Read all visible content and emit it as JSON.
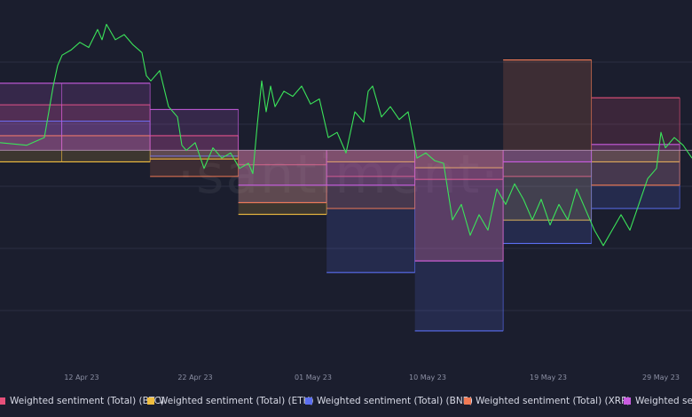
{
  "watermark": "·santiment·",
  "chart_data": {
    "type": "area",
    "title": "",
    "xlabel": "",
    "ylabel": "",
    "x_ticks": [
      "12 Apr 23",
      "22 Apr 23",
      "01 May 23",
      "10 May 23",
      "19 May 23",
      "29 May 23"
    ],
    "x_range": [
      "2023-04-03",
      "2023-06-01"
    ],
    "price_series": {
      "name": "",
      "color": "#3be35a",
      "y_range": [
        0,
        100
      ],
      "points": [
        [
          0,
          48
        ],
        [
          3,
          47
        ],
        [
          5,
          50
        ],
        [
          6,
          70
        ],
        [
          6.5,
          78
        ],
        [
          7,
          82
        ],
        [
          8,
          84
        ],
        [
          9,
          87
        ],
        [
          10,
          85
        ],
        [
          11,
          92
        ],
        [
          11.5,
          88
        ],
        [
          12,
          94
        ],
        [
          13,
          88
        ],
        [
          14,
          90
        ],
        [
          15,
          86
        ],
        [
          16,
          83
        ],
        [
          16.5,
          74
        ],
        [
          17,
          72
        ],
        [
          18,
          76
        ],
        [
          19,
          62
        ],
        [
          20,
          58
        ],
        [
          20.5,
          47
        ],
        [
          21,
          45
        ],
        [
          22,
          48
        ],
        [
          23,
          38
        ],
        [
          24,
          46
        ],
        [
          25,
          42
        ],
        [
          26,
          44
        ],
        [
          27,
          38
        ],
        [
          28,
          40
        ],
        [
          28.5,
          36
        ],
        [
          29,
          55
        ],
        [
          29.5,
          72
        ],
        [
          30,
          60
        ],
        [
          30.5,
          70
        ],
        [
          31,
          62
        ],
        [
          32,
          68
        ],
        [
          33,
          66
        ],
        [
          34,
          70
        ],
        [
          35,
          63
        ],
        [
          36,
          65
        ],
        [
          37,
          50
        ],
        [
          38,
          52
        ],
        [
          39,
          44
        ],
        [
          40,
          60
        ],
        [
          41,
          56
        ],
        [
          41.5,
          68
        ],
        [
          42,
          70
        ],
        [
          43,
          58
        ],
        [
          44,
          62
        ],
        [
          45,
          57
        ],
        [
          46,
          60
        ],
        [
          47,
          42
        ],
        [
          48,
          44
        ],
        [
          49,
          41
        ],
        [
          50,
          40
        ],
        [
          51,
          18
        ],
        [
          52,
          24
        ],
        [
          53,
          12
        ],
        [
          54,
          20
        ],
        [
          55,
          14
        ],
        [
          56,
          30
        ],
        [
          57,
          24
        ],
        [
          58,
          32
        ],
        [
          59,
          26
        ],
        [
          60,
          18
        ],
        [
          61,
          26
        ],
        [
          62,
          16
        ],
        [
          63,
          24
        ],
        [
          64,
          18
        ],
        [
          65,
          30
        ],
        [
          66,
          22
        ],
        [
          67,
          14
        ],
        [
          68,
          8
        ],
        [
          69,
          14
        ],
        [
          70,
          20
        ],
        [
          71,
          14
        ],
        [
          72,
          24
        ],
        [
          73,
          34
        ],
        [
          74,
          38
        ],
        [
          74.5,
          52
        ],
        [
          75,
          46
        ],
        [
          76,
          50
        ],
        [
          77,
          47
        ],
        [
          78,
          42
        ]
      ]
    },
    "sentiment_y_range": [
      -4,
      2
    ],
    "sentiment_series": [
      {
        "name": "Weighted sentiment (Total) (BTC)",
        "color": "#e6507a",
        "segments": [
          [
            -0.3,
            0.78
          ],
          [
            0.7,
            0.78
          ],
          [
            1.7,
            0.25
          ],
          [
            2.7,
            -0.25
          ],
          [
            3.7,
            -0.45
          ],
          [
            4.7,
            -0.5
          ],
          [
            5.7,
            -0.45
          ],
          [
            6.7,
            0.9
          ]
        ]
      },
      {
        "name": "Weighted sentiment (Total) (ETH)",
        "color": "#f0bd3f",
        "segments": [
          [
            -0.3,
            -0.2
          ],
          [
            0.7,
            -0.2
          ],
          [
            1.7,
            -0.15
          ],
          [
            2.7,
            -1.1
          ],
          [
            3.7,
            -0.2
          ],
          [
            4.7,
            -0.3
          ],
          [
            5.7,
            -1.2
          ],
          [
            6.7,
            -0.2
          ]
        ]
      },
      {
        "name": "Weighted sentiment (Total) (BNB)",
        "color": "#5b6ef0",
        "segments": [
          [
            -0.3,
            0.5
          ],
          [
            0.7,
            0.5
          ],
          [
            1.7,
            -0.1
          ],
          [
            2.7,
            -0.9
          ],
          [
            3.7,
            -2.1
          ],
          [
            4.7,
            -3.1
          ],
          [
            5.7,
            -1.6
          ],
          [
            6.7,
            -1.0
          ]
        ]
      },
      {
        "name": "Weighted sentiment (Total) (XRP)",
        "color": "#f07a55",
        "segments": [
          [
            -0.3,
            0.25
          ],
          [
            0.7,
            0.25
          ],
          [
            1.7,
            -0.45
          ],
          [
            2.7,
            -0.9
          ],
          [
            3.7,
            -1.0
          ],
          [
            4.7,
            -1.9
          ],
          [
            5.7,
            1.55
          ],
          [
            6.7,
            -0.6
          ]
        ]
      },
      {
        "name": "Weighted sentiment (Total) (DOGE)",
        "color": "#c95ce0",
        "segments": [
          [
            -0.3,
            1.15
          ],
          [
            0.7,
            1.15
          ],
          [
            1.7,
            0.7
          ],
          [
            2.7,
            -0.6
          ],
          [
            3.7,
            -0.6
          ],
          [
            4.7,
            -1.9
          ],
          [
            5.7,
            -0.2
          ],
          [
            6.7,
            0.1
          ]
        ]
      }
    ],
    "grid": true,
    "legend_position": "bottom"
  }
}
